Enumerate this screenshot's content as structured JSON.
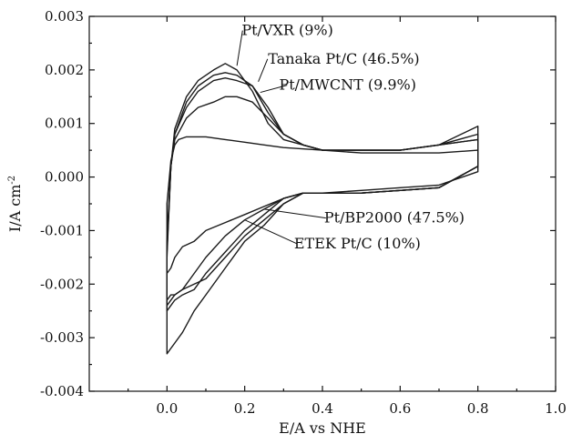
{
  "chart_data": {
    "type": "line",
    "title": "",
    "xlabel": "E/A vs NHE",
    "ylabel": "I/A cm",
    "ylabel_sup": "-2",
    "xlim": [
      -0.2,
      1.0
    ],
    "ylim": [
      -0.004,
      0.003
    ],
    "xticks": [
      0.0,
      0.2,
      0.4,
      0.6,
      0.8,
      1.0
    ],
    "xtick_labels": [
      "0.0",
      "0.2",
      "0.4",
      "0.6",
      "0.8",
      "1.0"
    ],
    "yticks": [
      0.003,
      0.002,
      0.001,
      0.0,
      -0.001,
      -0.002,
      -0.003,
      -0.004
    ],
    "ytick_labels": [
      "0.003",
      "0.002",
      "0.001",
      "0.000",
      "-0.001",
      "-0.002",
      "-0.003",
      "-0.004"
    ],
    "grid": false,
    "series": [
      {
        "name": "Pt/VXR (9%)",
        "x": [
          0.0,
          0.01,
          0.02,
          0.05,
          0.08,
          0.12,
          0.15,
          0.18,
          0.22,
          0.26,
          0.3,
          0.35,
          0.4,
          0.5,
          0.6,
          0.7,
          0.8,
          0.8,
          0.7,
          0.6,
          0.5,
          0.4,
          0.35,
          0.3,
          0.25,
          0.2,
          0.15,
          0.1,
          0.07,
          0.04,
          0.02,
          0.01,
          0.0
        ],
        "y": [
          -0.0015,
          0.0002,
          0.0009,
          0.0015,
          0.0018,
          0.002,
          0.00212,
          0.002,
          0.0016,
          0.001,
          0.0007,
          0.0006,
          0.0005,
          0.0005,
          0.0005,
          0.0006,
          0.00095,
          0.0002,
          -0.0002,
          -0.00025,
          -0.0003,
          -0.0003,
          -0.0003,
          -0.0004,
          -0.0007,
          -0.001,
          -0.0014,
          -0.0018,
          -0.0021,
          -0.0022,
          -0.0023,
          -0.0024,
          -0.0025
        ]
      },
      {
        "name": "Tanaka Pt/C (46.5%)",
        "x": [
          0.0,
          0.01,
          0.02,
          0.05,
          0.08,
          0.12,
          0.15,
          0.18,
          0.22,
          0.26,
          0.3,
          0.35,
          0.4,
          0.5,
          0.6,
          0.7,
          0.8,
          0.8,
          0.7,
          0.6,
          0.5,
          0.4,
          0.35,
          0.3,
          0.25,
          0.2,
          0.15,
          0.1,
          0.07,
          0.04,
          0.02,
          0.01,
          0.0
        ],
        "y": [
          -0.0014,
          0.0002,
          0.0008,
          0.0014,
          0.0017,
          0.0019,
          0.00195,
          0.0019,
          0.0017,
          0.0012,
          0.0008,
          0.0006,
          0.0005,
          0.0005,
          0.0005,
          0.0006,
          0.0008,
          0.0002,
          -0.0002,
          -0.00025,
          -0.0003,
          -0.0003,
          -0.0003,
          -0.0005,
          -0.0008,
          -0.0011,
          -0.0015,
          -0.0019,
          -0.002,
          -0.0021,
          -0.0022,
          -0.0023,
          -0.0024
        ]
      },
      {
        "name": "Pt/MWCNT (9.9%)",
        "x": [
          0.0,
          0.01,
          0.02,
          0.05,
          0.08,
          0.12,
          0.15,
          0.18,
          0.22,
          0.26,
          0.3,
          0.35,
          0.4,
          0.5,
          0.6,
          0.7,
          0.8,
          0.8,
          0.7,
          0.6,
          0.5,
          0.4,
          0.35,
          0.3,
          0.25,
          0.2,
          0.15,
          0.1,
          0.07,
          0.04,
          0.02,
          0.01,
          0.0
        ],
        "y": [
          -0.0013,
          0.0002,
          0.0008,
          0.0013,
          0.0016,
          0.0018,
          0.00185,
          0.0018,
          0.0017,
          0.0013,
          0.0008,
          0.0006,
          0.0005,
          0.0005,
          0.0005,
          0.0006,
          0.0007,
          0.0002,
          -0.0002,
          -0.00025,
          -0.0003,
          -0.0003,
          -0.0003,
          -0.0005,
          -0.0009,
          -0.0012,
          -0.0017,
          -0.0022,
          -0.0025,
          -0.0029,
          -0.0031,
          -0.0032,
          -0.0033
        ]
      },
      {
        "name": "Pt/BP2000 (47.5%)",
        "x": [
          0.0,
          0.01,
          0.02,
          0.05,
          0.08,
          0.12,
          0.15,
          0.18,
          0.22,
          0.26,
          0.3,
          0.35,
          0.4,
          0.5,
          0.6,
          0.7,
          0.8,
          0.8,
          0.7,
          0.6,
          0.5,
          0.4,
          0.35,
          0.3,
          0.25,
          0.2,
          0.15,
          0.1,
          0.07,
          0.04,
          0.02,
          0.01,
          0.0
        ],
        "y": [
          -0.0012,
          0.0002,
          0.0007,
          0.0011,
          0.0013,
          0.0014,
          0.0015,
          0.0015,
          0.0014,
          0.0011,
          0.0008,
          0.0006,
          0.0005,
          0.0005,
          0.0005,
          0.0006,
          0.0007,
          0.0002,
          -0.0002,
          -0.00025,
          -0.0003,
          -0.0003,
          -0.0003,
          -0.0004,
          -0.00055,
          -0.0007,
          -0.00085,
          -0.001,
          -0.0012,
          -0.0013,
          -0.0015,
          -0.0017,
          -0.0018
        ]
      },
      {
        "name": "ETEK Pt/C (10%)",
        "x": [
          0.0,
          0.01,
          0.02,
          0.03,
          0.05,
          0.1,
          0.15,
          0.2,
          0.25,
          0.3,
          0.4,
          0.5,
          0.6,
          0.7,
          0.8,
          0.8,
          0.7,
          0.6,
          0.5,
          0.4,
          0.35,
          0.3,
          0.25,
          0.2,
          0.15,
          0.1,
          0.07,
          0.04,
          0.02,
          0.01,
          0.0
        ],
        "y": [
          -0.0005,
          0.0003,
          0.0006,
          0.0007,
          0.00075,
          0.00075,
          0.0007,
          0.00065,
          0.0006,
          0.00055,
          0.0005,
          0.00045,
          0.00045,
          0.00045,
          0.0005,
          0.0001,
          -0.00015,
          -0.0002,
          -0.00025,
          -0.0003,
          -0.0003,
          -0.0004,
          -0.0006,
          -0.0008,
          -0.0011,
          -0.0015,
          -0.0018,
          -0.0021,
          -0.0022,
          -0.0022,
          -0.0023
        ]
      }
    ],
    "annotations": [
      {
        "text": "Pt/VXR (9%)",
        "x": 0.31,
        "y": 0.00265,
        "arrow_to": [
          0.18,
          0.00208
        ]
      },
      {
        "text": "Tanaka Pt/C (46.5%)",
        "x": 0.455,
        "y": 0.00212,
        "arrow_to": [
          0.235,
          0.00178
        ]
      },
      {
        "text": "Pt/MWCNT (9.9%)",
        "x": 0.465,
        "y": 0.00163,
        "arrow_to": [
          0.24,
          0.00158
        ]
      },
      {
        "text": "Pt/BP2000 (47.5%)",
        "x": 0.585,
        "y": -0.00085,
        "arrow_to": [
          0.25,
          -0.0006
        ]
      },
      {
        "text": "ETEK Pt/C (10%)",
        "x": 0.49,
        "y": -0.00133,
        "arrow_to": [
          0.2,
          -0.0008
        ]
      }
    ]
  }
}
